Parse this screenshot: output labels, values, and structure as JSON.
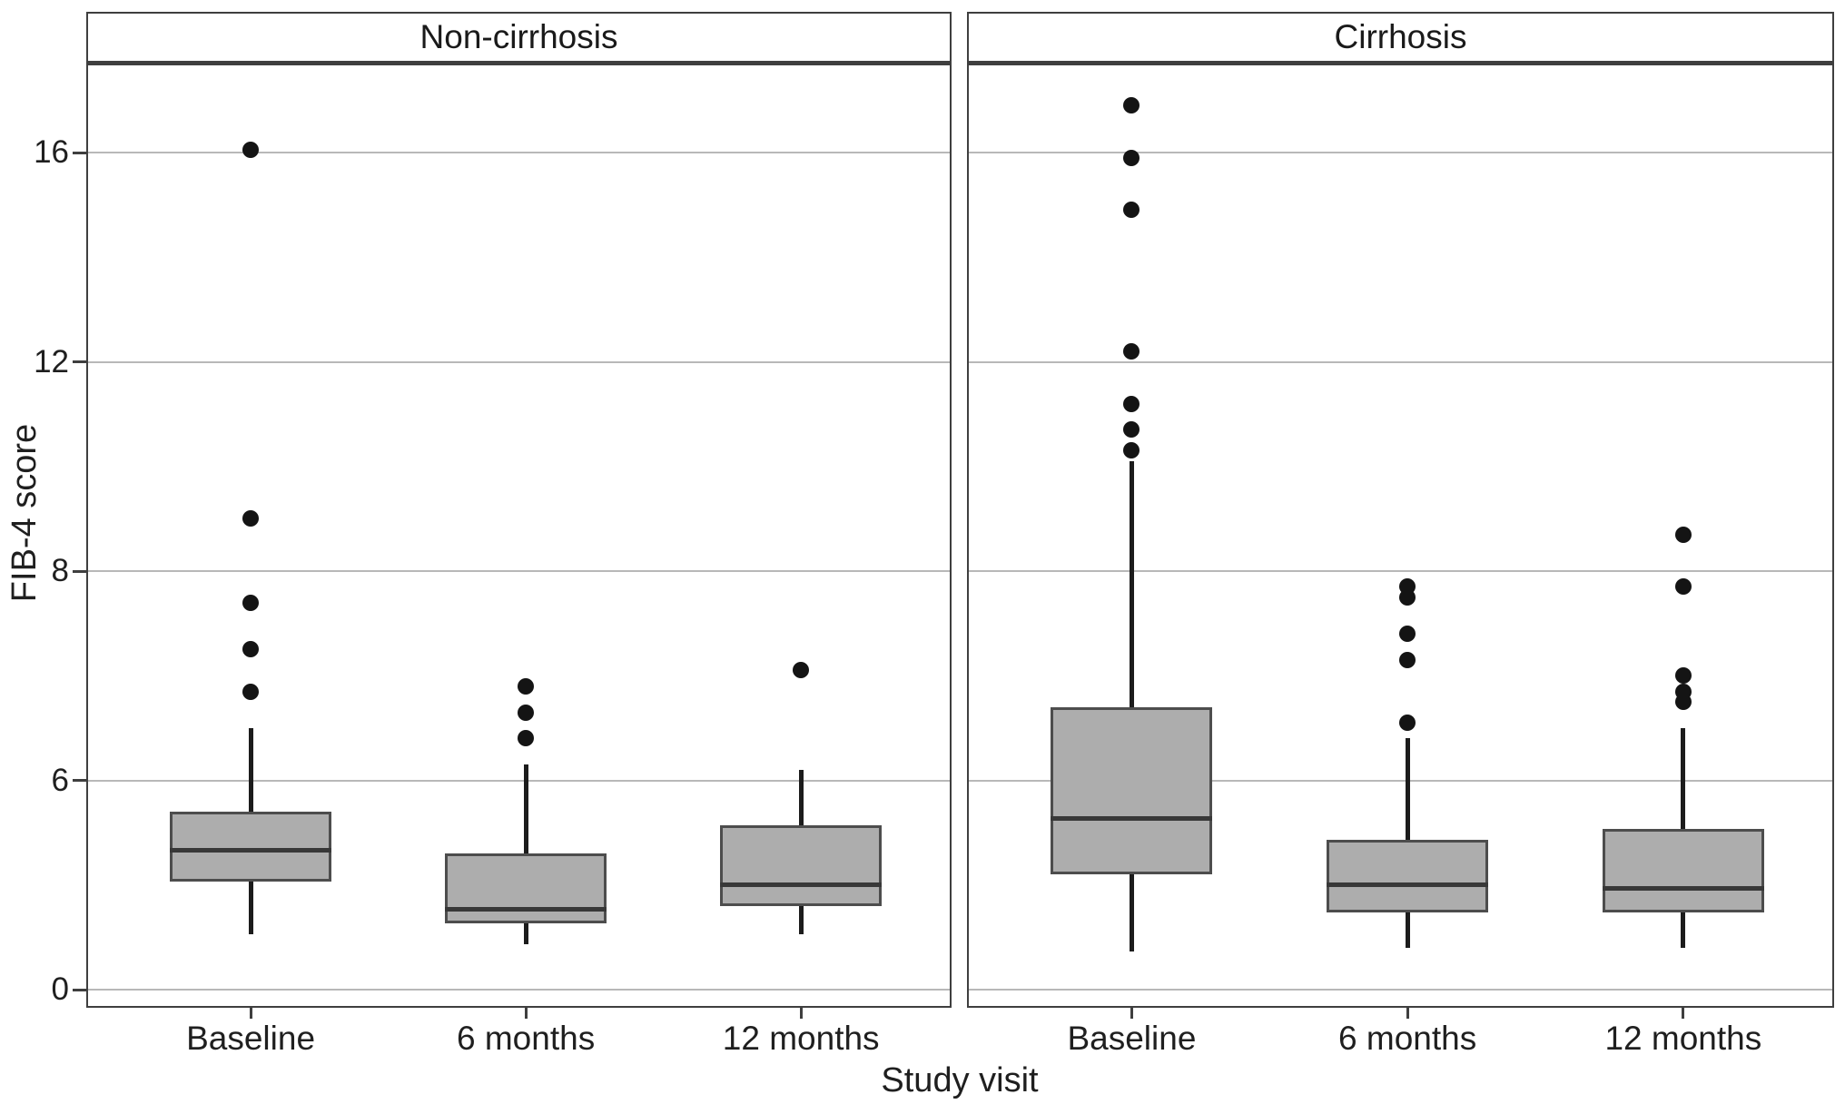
{
  "chart_data": {
    "type": "boxplot",
    "title": "",
    "xlabel": "Study visit",
    "ylabel": "FIB-4 score",
    "yticks": [
      0,
      6,
      8,
      12,
      16
    ],
    "ylim": [
      0,
      17.7
    ],
    "yscale_note": "tick values 0,6,8,12,16 rendered at equal pixel spacing (non-linear axis as printed)",
    "grid": "horizontal-gridlines-on",
    "legend": "none",
    "categories": [
      "Baseline",
      "6 months",
      "12 months"
    ],
    "box_fill_color": "#adadad",
    "box_border_color": "#4d4d4d",
    "panels": [
      {
        "title": "Non-cirrhosis",
        "boxes": [
          {
            "category": "Baseline",
            "whisker_low": 1.6,
            "q1": 3.1,
            "median": 4.0,
            "q3": 5.1,
            "whisker_high": 6.5,
            "outliers": [
              6.85,
              7.25,
              7.7,
              9.0,
              16.05
            ]
          },
          {
            "category": "6 months",
            "whisker_low": 1.3,
            "q1": 1.9,
            "median": 2.3,
            "q3": 3.9,
            "whisker_high": 6.15,
            "outliers": [
              6.4,
              6.65,
              6.9
            ]
          },
          {
            "category": "12 months",
            "whisker_low": 1.6,
            "q1": 2.4,
            "median": 3.0,
            "q3": 4.7,
            "whisker_high": 6.1,
            "outliers": [
              7.05
            ]
          }
        ]
      },
      {
        "title": "Cirrhosis",
        "boxes": [
          {
            "category": "Baseline",
            "whisker_low": 1.1,
            "q1": 3.3,
            "median": 4.9,
            "q3": 6.7,
            "whisker_high": 10.1,
            "outliers": [
              10.3,
              10.7,
              11.2,
              12.2,
              14.9,
              15.9,
              16.9
            ]
          },
          {
            "category": "6 months",
            "whisker_low": 1.2,
            "q1": 2.2,
            "median": 3.0,
            "q3": 4.3,
            "whisker_high": 6.4,
            "outliers": [
              6.55,
              7.15,
              7.4,
              7.75,
              7.85
            ]
          },
          {
            "category": "12 months",
            "whisker_low": 1.2,
            "q1": 2.2,
            "median": 2.9,
            "q3": 4.6,
            "whisker_high": 6.5,
            "outliers": [
              6.75,
              6.85,
              7.0,
              7.85,
              8.7
            ]
          }
        ]
      }
    ]
  }
}
